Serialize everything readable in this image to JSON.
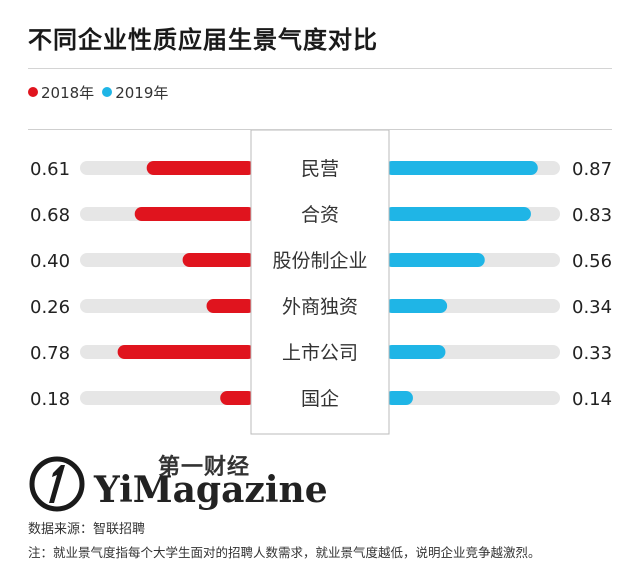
{
  "title": "不同企业性质应届生景气度对比",
  "source": "数据来源：智联招聘",
  "note": "注：就业景气度指每个大学生面对的招聘人数需求，就业景气度越低，说明企业竞争越激烈。",
  "logo": {
    "cn": "第一财经",
    "en": "YiMagazine"
  },
  "colors": {
    "2018": "#e0141e",
    "2019": "#1fb5e6",
    "track": "#e6e6e6"
  },
  "chart_data": {
    "type": "bar",
    "layout": "butterfly",
    "categories": [
      "民营",
      "合资",
      "股份制企业",
      "外商独资",
      "上市公司",
      "国企"
    ],
    "series": [
      {
        "name": "2018年",
        "values": [
          0.61,
          0.68,
          0.4,
          0.26,
          0.78,
          0.18
        ]
      },
      {
        "name": "2019年",
        "values": [
          0.87,
          0.83,
          0.56,
          0.34,
          0.33,
          0.14
        ]
      }
    ],
    "value_labels": {
      "2018": [
        "0.61",
        "0.68",
        "0.40",
        "0.26",
        "0.78",
        "0.18"
      ],
      "2019": [
        "0.87",
        "0.83",
        "0.56",
        "0.34",
        "0.33",
        "0.14"
      ]
    },
    "xlim": [
      0,
      1
    ],
    "legend": "top-left"
  }
}
